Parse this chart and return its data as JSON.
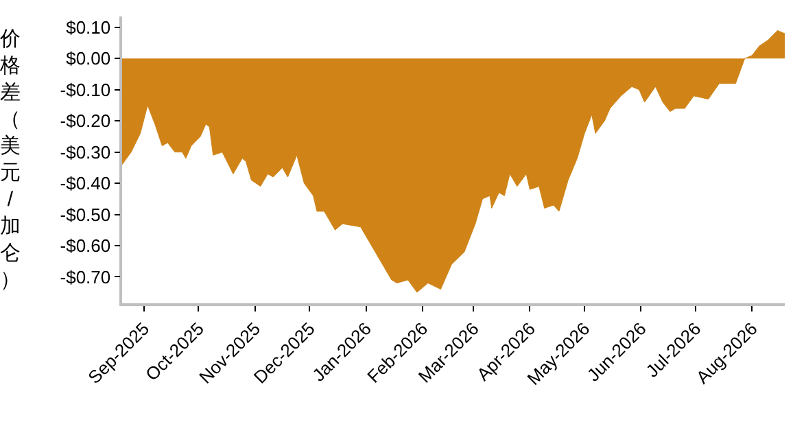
{
  "chart_data": {
    "type": "area",
    "ylabel": "价格差（美元/加仑）",
    "x": [
      "2025-08-20",
      "2025-08-25",
      "2025-08-30",
      "2025-09-03",
      "2025-09-07",
      "2025-09-11",
      "2025-09-14",
      "2025-09-18",
      "2025-09-22",
      "2025-09-24",
      "2025-09-27",
      "2025-10-02",
      "2025-10-05",
      "2025-10-07",
      "2025-10-09",
      "2025-10-14",
      "2025-10-20",
      "2025-10-25",
      "2025-10-27",
      "2025-10-30",
      "2025-11-04",
      "2025-11-08",
      "2025-11-11",
      "2025-11-16",
      "2025-11-19",
      "2025-11-24",
      "2025-11-28",
      "2025-12-03",
      "2025-12-05",
      "2025-12-09",
      "2025-12-15",
      "2025-12-19",
      "2025-12-29",
      "2026-01-03",
      "2026-01-10",
      "2026-01-15",
      "2026-01-18",
      "2026-01-24",
      "2026-01-29",
      "2026-02-04",
      "2026-02-11",
      "2026-02-17",
      "2026-02-24",
      "2026-03-02",
      "2026-03-06",
      "2026-03-10",
      "2026-03-11",
      "2026-03-15",
      "2026-03-18",
      "2026-03-21",
      "2026-03-25",
      "2026-03-30",
      "2026-04-01",
      "2026-04-06",
      "2026-04-09",
      "2026-04-14",
      "2026-04-17",
      "2026-04-22",
      "2026-04-27",
      "2026-05-01",
      "2026-05-05",
      "2026-05-07",
      "2026-05-12",
      "2026-05-15",
      "2026-05-21",
      "2026-05-27",
      "2026-05-31",
      "2026-06-03",
      "2026-06-09",
      "2026-06-13",
      "2026-06-17",
      "2026-06-20",
      "2026-06-25",
      "2026-06-30",
      "2026-07-08",
      "2026-07-14",
      "2026-07-23",
      "2026-07-28",
      "2026-08-01",
      "2026-08-05",
      "2026-08-10",
      "2026-08-15",
      "2026-08-19"
    ],
    "series": [
      {
        "color": "#d08418",
        "values": [
          -0.34,
          -0.3,
          -0.24,
          -0.15,
          -0.21,
          -0.28,
          -0.27,
          -0.3,
          -0.3,
          -0.32,
          -0.28,
          -0.25,
          -0.21,
          -0.22,
          -0.31,
          -0.3,
          -0.37,
          -0.32,
          -0.33,
          -0.39,
          -0.41,
          -0.37,
          -0.38,
          -0.35,
          -0.38,
          -0.31,
          -0.4,
          -0.44,
          -0.49,
          -0.49,
          -0.55,
          -0.53,
          -0.54,
          -0.59,
          -0.66,
          -0.71,
          -0.72,
          -0.71,
          -0.75,
          -0.72,
          -0.74,
          -0.66,
          -0.62,
          -0.53,
          -0.45,
          -0.44,
          -0.48,
          -0.43,
          -0.44,
          -0.37,
          -0.41,
          -0.37,
          -0.42,
          -0.41,
          -0.48,
          -0.47,
          -0.49,
          -0.39,
          -0.32,
          -0.24,
          -0.18,
          -0.24,
          -0.2,
          -0.16,
          -0.12,
          -0.09,
          -0.1,
          -0.14,
          -0.09,
          -0.14,
          -0.17,
          -0.16,
          -0.16,
          -0.12,
          -0.13,
          -0.08,
          -0.08,
          0.0,
          0.01,
          0.04,
          0.06,
          0.09,
          0.08
        ]
      }
    ],
    "xlim": [
      "2025-08-20",
      "2026-08-19"
    ],
    "xticks": [
      {
        "value": "2025-09-01",
        "label": "Sep-2025"
      },
      {
        "value": "2025-10-01",
        "label": "Oct-2025"
      },
      {
        "value": "2025-11-01",
        "label": "Nov-2025"
      },
      {
        "value": "2025-12-01",
        "label": "Dec-2025"
      },
      {
        "value": "2026-01-01",
        "label": "Jan-2026"
      },
      {
        "value": "2026-02-01",
        "label": "Feb-2026"
      },
      {
        "value": "2026-03-01",
        "label": "Mar-2026"
      },
      {
        "value": "2026-04-01",
        "label": "Apr-2026"
      },
      {
        "value": "2026-05-01",
        "label": "May-2026"
      },
      {
        "value": "2026-06-01",
        "label": "Jun-2026"
      },
      {
        "value": "2026-07-01",
        "label": "Jul-2026"
      },
      {
        "value": "2026-08-01",
        "label": "Aug-2026"
      }
    ],
    "ylim": [
      -0.785,
      0.135
    ],
    "yticks": [
      {
        "value": 0.1,
        "label": "$0.10"
      },
      {
        "value": 0.0,
        "label": "$0.00"
      },
      {
        "value": -0.1,
        "label": "-$0.10"
      },
      {
        "value": -0.2,
        "label": "-$0.20"
      },
      {
        "value": -0.3,
        "label": "-$0.30"
      },
      {
        "value": -0.4,
        "label": "-$0.40"
      },
      {
        "value": -0.5,
        "label": "-$0.50"
      },
      {
        "value": -0.6,
        "label": "-$0.60"
      },
      {
        "value": -0.7,
        "label": "-$0.70"
      }
    ]
  }
}
